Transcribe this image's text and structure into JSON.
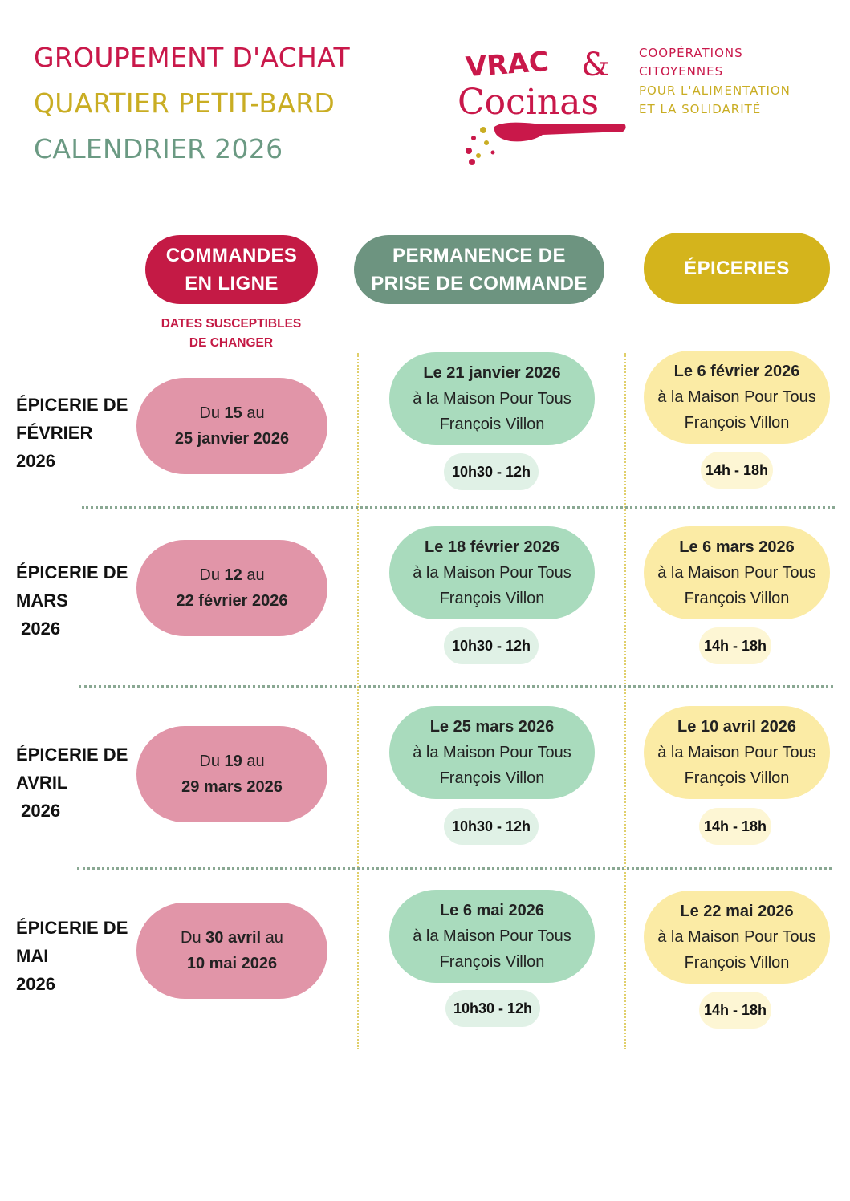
{
  "header": {
    "line1": "GROUPEMENT D'ACHAT",
    "line2": "QUARTIER PETIT-BARD",
    "line3": "CALENDRIER 2026"
  },
  "logo": {
    "word1": "VRAC",
    "amp": "&",
    "word2": "Cocinas",
    "tagline": [
      "COOPÉRATIONS",
      "CITOYENNES",
      "POUR L'ALIMENTATION",
      "ET LA SOLIDARITÉ"
    ],
    "colors": {
      "red": "#c9184a",
      "gold": "#c9ad23"
    }
  },
  "columns": {
    "online": "COMMANDES\nEN LIGNE",
    "permanence": "PERMANENCE DE\nPRISE DE COMMANDE",
    "groceries": "ÉPICERIES",
    "online_note": "DATES SUSCEPTIBLES\nDE CHANGER"
  },
  "rows": [
    {
      "label": "ÉPICERIE DE\nFÉVRIER\n2026",
      "order": {
        "prefix": "Du ",
        "start": "15",
        "mid": " au",
        "end": "25 janvier 2026"
      },
      "permanence": {
        "date": "Le 21 janvier 2026",
        "place1": "à la Maison Pour Tous",
        "place2": "François Villon",
        "time": "10h30 - 12h"
      },
      "grocery": {
        "date": "Le 6 février 2026",
        "place1": "à la Maison Pour Tous",
        "place2": "François Villon",
        "time": "14h - 18h"
      }
    },
    {
      "label": "ÉPICERIE DE\nMARS\n 2026",
      "order": {
        "prefix": "Du ",
        "start": "12",
        "mid": " au",
        "end": "22 février 2026"
      },
      "permanence": {
        "date": "Le 18 février 2026",
        "place1": "à la Maison Pour Tous",
        "place2": "François Villon",
        "time": "10h30 - 12h"
      },
      "grocery": {
        "date": "Le 6 mars 2026",
        "place1": "à la Maison Pour Tous",
        "place2": "François Villon",
        "time": "14h - 18h"
      }
    },
    {
      "label": "ÉPICERIE DE\nAVRIL\n 2026",
      "order": {
        "prefix": "Du ",
        "start": "19",
        "mid": " au",
        "end": "29 mars 2026"
      },
      "permanence": {
        "date": "Le 25 mars 2026",
        "place1": "à la Maison Pour Tous",
        "place2": "François Villon",
        "time": "10h30 - 12h"
      },
      "grocery": {
        "date": "Le 10 avril 2026",
        "place1": "à la Maison Pour Tous",
        "place2": "François Villon",
        "time": "14h - 18h"
      }
    },
    {
      "label": "ÉPICERIE DE\nMAI\n2026",
      "order": {
        "prefix": "Du ",
        "start": "30 avril",
        "mid": " au",
        "end": "10 mai 2026"
      },
      "permanence": {
        "date": "Le 6 mai 2026",
        "place1": "à la Maison Pour Tous",
        "place2": "François Villon",
        "time": "10h30 - 12h"
      },
      "grocery": {
        "date": "Le 22 mai 2026",
        "place1": "à la Maison Pour Tous",
        "place2": "François Villon",
        "time": "14h - 18h"
      }
    }
  ]
}
